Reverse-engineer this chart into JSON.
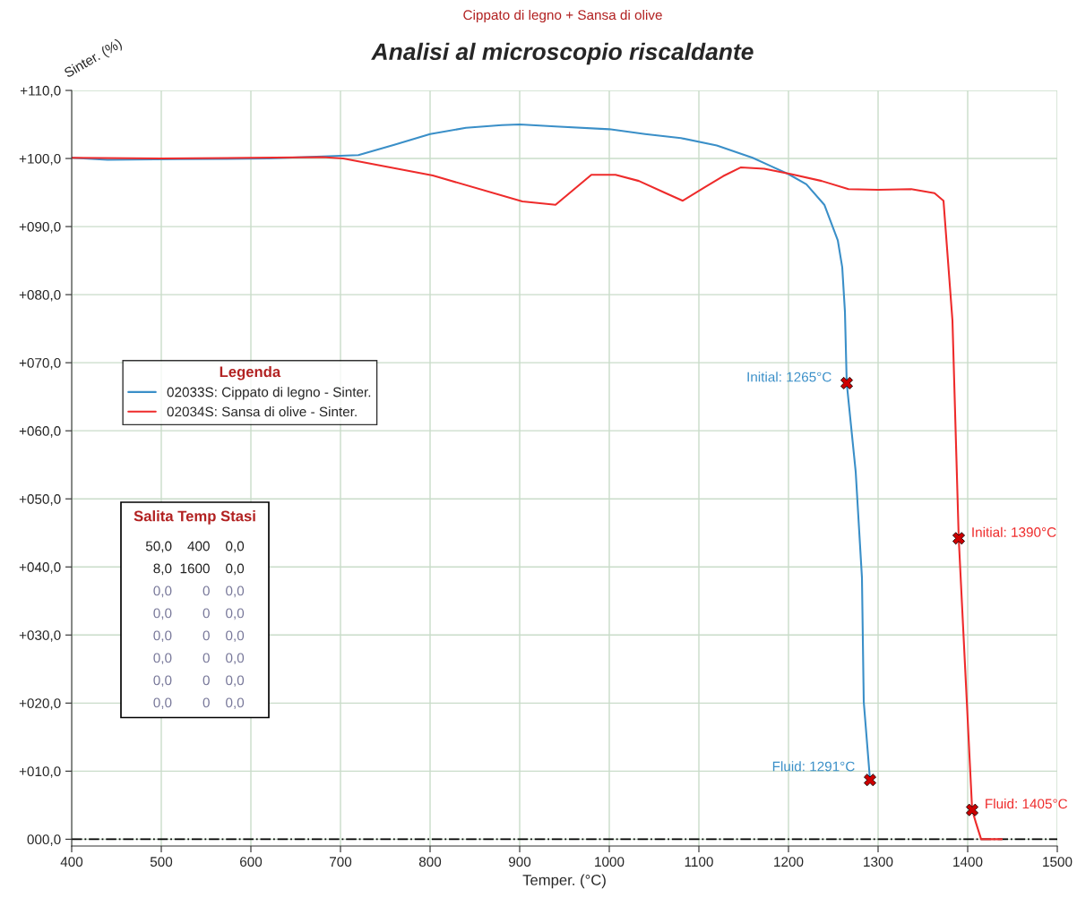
{
  "chart_data": {
    "type": "line",
    "subtitle": "Cippato di legno + Sansa di olive",
    "title": "Analisi al microscopio riscaldante",
    "xlabel": "Temper. (°C)",
    "ylabel": "Sinter. (%)",
    "legend_title": "Legenda",
    "legend": "left",
    "grid": true,
    "xlim": [
      400,
      1500
    ],
    "xticks": [
      400,
      500,
      600,
      700,
      800,
      900,
      1000,
      1100,
      1200,
      1300,
      1400,
      1500
    ],
    "ylim": [
      -1,
      110
    ],
    "yticks": [
      {
        "value": 0,
        "label": "000,0"
      },
      {
        "value": 10,
        "label": "+010,0"
      },
      {
        "value": 20,
        "label": "+020,0"
      },
      {
        "value": 30,
        "label": "+030,0"
      },
      {
        "value": 40,
        "label": "+040,0"
      },
      {
        "value": 50,
        "label": "+050,0"
      },
      {
        "value": 60,
        "label": "+060,0"
      },
      {
        "value": 70,
        "label": "+070,0"
      },
      {
        "value": 80,
        "label": "+080,0"
      },
      {
        "value": 90,
        "label": "+090,0"
      },
      {
        "value": 100,
        "label": "+100,0"
      },
      {
        "value": 110,
        "label": "+110,0"
      }
    ],
    "ref_lines": [
      {
        "axis": "y",
        "value": 0,
        "color": "#000000",
        "line_style": "dashdot"
      }
    ],
    "series": [
      {
        "name": "02033S: Cippato di legno - Sinter.",
        "color": "#3a8fc8",
        "marker": "none",
        "x": [
          400,
          440,
          520,
          620,
          720,
          760,
          800,
          840,
          880,
          900,
          940,
          1000,
          1040,
          1080,
          1120,
          1160,
          1180,
          1200,
          1220,
          1240,
          1255,
          1260,
          1263,
          1265,
          1275,
          1282,
          1284,
          1291
        ],
        "values": [
          100.1,
          99.8,
          99.9,
          100.0,
          100.5,
          102.0,
          103.6,
          104.5,
          104.9,
          105.0,
          104.7,
          104.3,
          103.6,
          103.0,
          101.9,
          100.1,
          98.9,
          97.7,
          96.2,
          93.2,
          88,
          84,
          77.5,
          67,
          54,
          38.4,
          20.2,
          8.7
        ]
      },
      {
        "name": "02034S: Sansa di olive - Sinter.",
        "color": "#ee2b2b",
        "marker": "none",
        "x": [
          400,
          500,
          600,
          680,
          703,
          803,
          903,
          940,
          980,
          1007,
          1033,
          1063,
          1082,
          1107,
          1127,
          1147,
          1173,
          1203,
          1237,
          1267,
          1300,
          1337,
          1363,
          1373,
          1383,
          1390,
          1405,
          1409,
          1415,
          1438
        ],
        "values": [
          100.1,
          100.0,
          100.1,
          100.2,
          100.0,
          97.5,
          93.7,
          93.2,
          97.6,
          97.6,
          96.7,
          94.9,
          93.8,
          95.8,
          97.4,
          98.7,
          98.5,
          97.7,
          96.7,
          95.5,
          95.4,
          95.5,
          94.9,
          93.8,
          76.2,
          44.2,
          4.3,
          2.5,
          0,
          0
        ]
      },
      {
        "type": "scatter",
        "color": "#cc0000",
        "marker": "cross",
        "x": [
          1265,
          1291,
          1390,
          1405
        ],
        "values": [
          67,
          8.7,
          44.2,
          4.3
        ]
      }
    ],
    "annotations": [
      {
        "text": "Initial: 1265°C",
        "x": 1265,
        "y": 67
      },
      {
        "text": "Fluid: 1291°C",
        "x": 1291,
        "y": 8.7
      },
      {
        "text": "Initial: 1390°C",
        "x": 1390,
        "y": 44.2
      },
      {
        "text": "Fluid: 1405°C",
        "x": 1405,
        "y": 4.3
      },
      "Salita Temp Stasi",
      "50,0    400    0,0",
      "  8,0  1600    0,0",
      "  0,0        0    0,0",
      "  0,0        0    0,0",
      "  0,0        0    0,0",
      "  0,0        0    0,0",
      "  0,0        0    0,0",
      "  0,0        0    0,0"
    ]
  }
}
